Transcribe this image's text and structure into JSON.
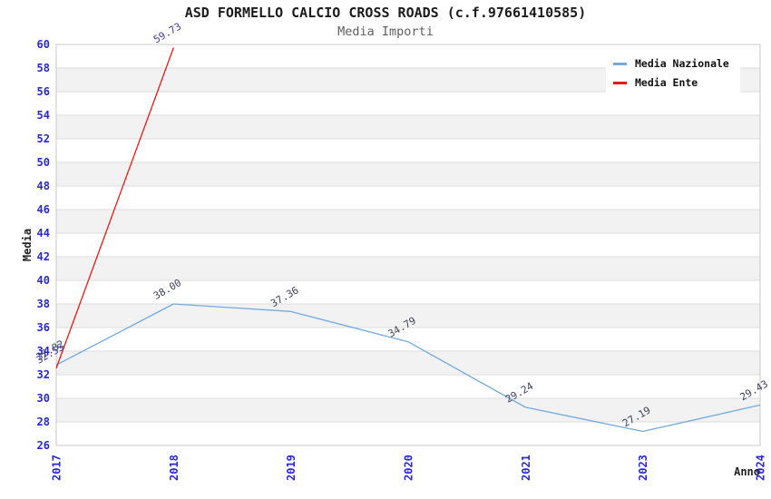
{
  "chart_data": {
    "type": "line",
    "title": "ASD FORMELLO CALCIO CROSS ROADS (c.f.97661410585)",
    "subtitle": "Media Importi",
    "xlabel": "Anno",
    "ylabel": "Media",
    "ylim": [
      26,
      60
    ],
    "ytick_step": 2,
    "grid": "horizontal gridlines with alternating shaded bands",
    "legend_position": "top-right",
    "categories": [
      "2017",
      "2018",
      "2019",
      "2020",
      "2021",
      "2023",
      "2024"
    ],
    "series": [
      {
        "name": "Media Nazionale",
        "color": "#72aade",
        "label_color": "#40405e",
        "values": [
          32.82,
          38.0,
          37.36,
          34.79,
          29.24,
          27.19,
          29.43
        ],
        "labels": [
          "32.82",
          "38.00",
          "37.36",
          "34.79",
          "29.24",
          "27.19",
          "29.43"
        ]
      },
      {
        "name": "Media Ente",
        "color": "#e81919",
        "label_color": "#4040a0",
        "values": [
          32.55,
          59.73,
          null,
          null,
          null,
          null,
          null
        ],
        "labels": [
          "32.55",
          "59.73",
          "",
          "",
          "",
          "",
          ""
        ]
      }
    ]
  },
  "colors": {
    "tick_label": "#2828d7",
    "band_gray": "#f2f2f2",
    "band_white": "#ffffff",
    "gridline": "#dcdcdc",
    "border": "#c8c8c8",
    "title": "#1c1c1c",
    "subtitle": "#5f5f5f",
    "axis_title": "#222222"
  }
}
